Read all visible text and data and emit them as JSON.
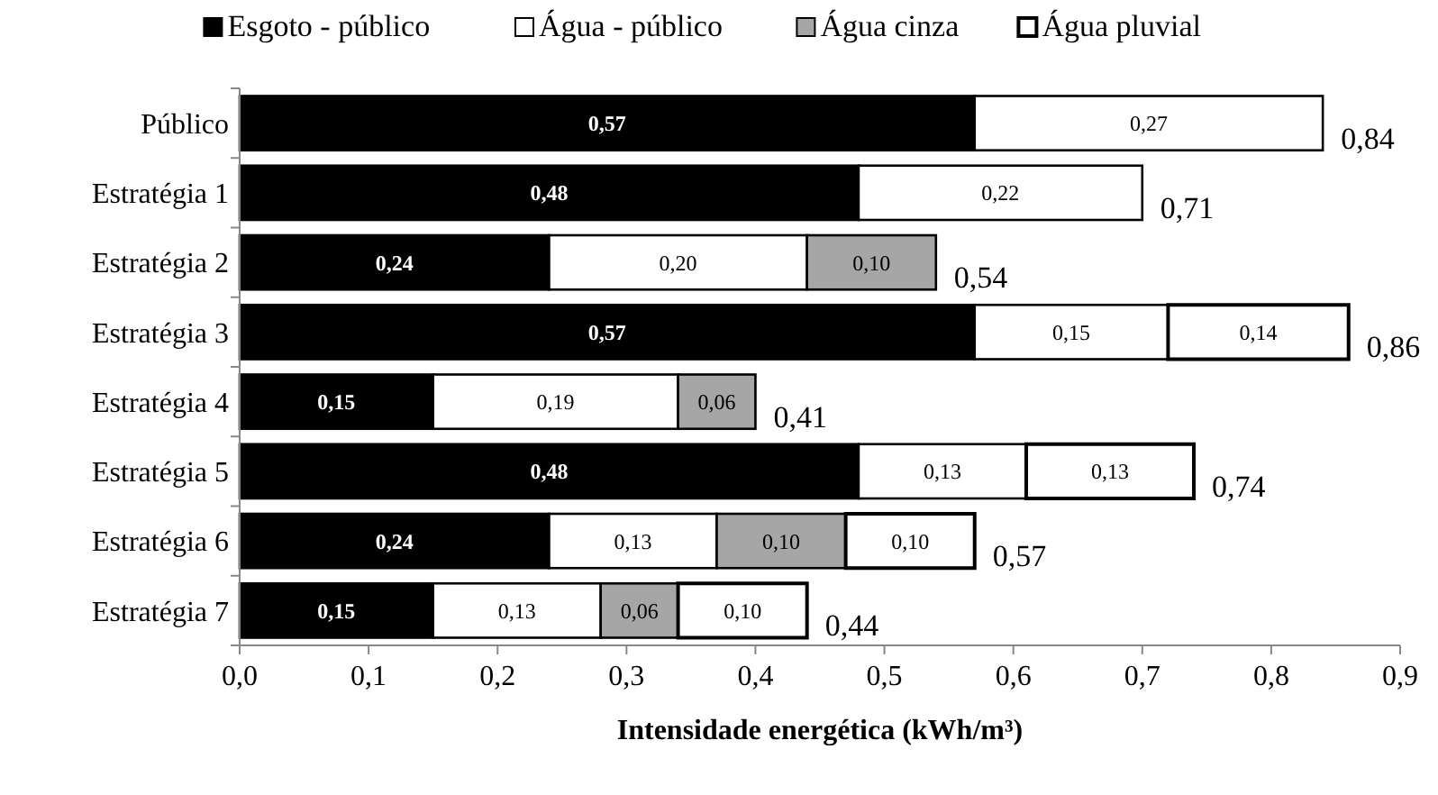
{
  "chart_data": {
    "type": "bar",
    "orientation": "horizontal",
    "stacked": true,
    "xlabel": "Intensidade energética (kWh/m³)",
    "categories": [
      "Público",
      "Estratégia 1",
      "Estratégia 2",
      "Estratégia 3",
      "Estratégia 4",
      "Estratégia 5",
      "Estratégia 6",
      "Estratégia 7"
    ],
    "series": [
      {
        "name": "Esgoto - público",
        "color": "#000000",
        "values": [
          0.57,
          0.48,
          0.24,
          0.57,
          0.15,
          0.48,
          0.24,
          0.15
        ],
        "value_labels": [
          "0,57",
          "0,48",
          "0,24",
          "0,57",
          "0,15",
          "0,48",
          "0,24",
          "0,15"
        ]
      },
      {
        "name": "Água - público",
        "color": "#ffffff",
        "values": [
          0.27,
          0.22,
          0.2,
          0.15,
          0.19,
          0.13,
          0.13,
          0.13
        ],
        "value_labels": [
          "0,27",
          "0,22",
          "0,20",
          "0,15",
          "0,19",
          "0,13",
          "0,13",
          "0,13"
        ]
      },
      {
        "name": "Água cinza",
        "color": "#a6a6a6",
        "values": [
          null,
          null,
          0.1,
          null,
          0.06,
          null,
          0.1,
          0.06
        ],
        "value_labels": [
          null,
          null,
          "0,10",
          null,
          "0,06",
          null,
          "0,10",
          "0,06"
        ]
      },
      {
        "name": "Água pluvial",
        "color": "#ffffff",
        "values": [
          null,
          null,
          null,
          0.14,
          null,
          0.13,
          0.1,
          0.1
        ],
        "value_labels": [
          null,
          null,
          null,
          "0,14",
          null,
          "0,13",
          "0,10",
          "0,10"
        ]
      }
    ],
    "totals": [
      "0,84",
      "0,71",
      "0,54",
      "0,86",
      "0,41",
      "0,74",
      "0,57",
      "0,44"
    ],
    "xlim": [
      0,
      0.9
    ],
    "xticks": [
      {
        "value": 0,
        "label": "0,0"
      },
      {
        "value": 0.1,
        "label": "0,1"
      },
      {
        "value": 0.2,
        "label": "0,2"
      },
      {
        "value": 0.3,
        "label": "0,3"
      },
      {
        "value": 0.4,
        "label": "0,4"
      },
      {
        "value": 0.5,
        "label": "0,5"
      },
      {
        "value": 0.6,
        "label": "0,6"
      },
      {
        "value": 0.7,
        "label": "0,7"
      },
      {
        "value": 0.8,
        "label": "0,8"
      },
      {
        "value": 0.9,
        "label": "0,9"
      }
    ],
    "grid": false,
    "legend": "top"
  }
}
